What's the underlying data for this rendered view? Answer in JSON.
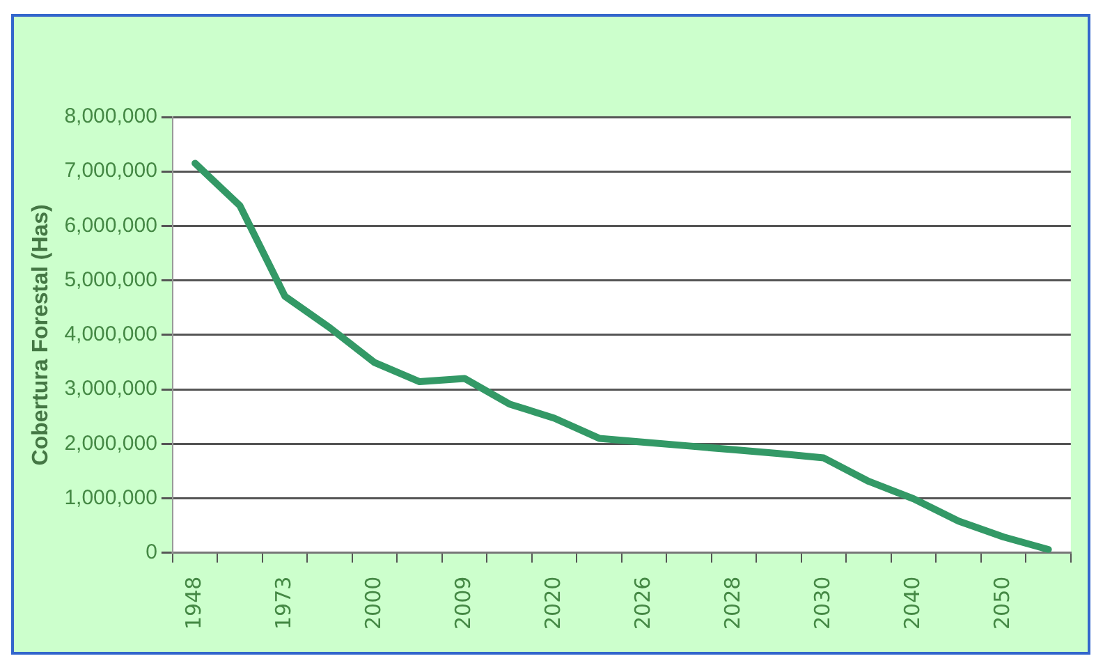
{
  "chart_data": {
    "type": "line",
    "ylabel": "Cobertura Forestal (Has)",
    "categories": [
      "1948",
      null,
      "1973",
      null,
      "2000",
      null,
      "2009",
      null,
      "2020",
      null,
      "2026",
      null,
      "2028",
      null,
      "2030",
      null,
      "2040",
      null,
      "2050",
      null
    ],
    "series": [
      {
        "color": "#339966",
        "values": [
          7150000,
          6370000,
          4710000,
          4130000,
          3490000,
          3140000,
          3200000,
          2730000,
          2470000,
          2100000,
          2030000,
          1960000,
          1890000,
          1820000,
          1740000,
          1310000,
          990000,
          580000,
          290000,
          60000
        ]
      }
    ],
    "ylim": [
      0,
      8000000
    ],
    "yticks": [
      0,
      {
        "value": 1000000,
        "label": "1,000,000"
      },
      {
        "value": 2000000,
        "label": "2,000,000"
      },
      {
        "value": 3000000,
        "label": "3,000,000"
      },
      {
        "value": 4000000,
        "label": "4,000,000"
      },
      {
        "value": 5000000,
        "label": "5,000,000"
      },
      {
        "value": 6000000,
        "label": "6,000,000"
      },
      {
        "value": 7000000,
        "label": "7,000,000"
      },
      {
        "value": 8000000,
        "label": "8,000,000"
      }
    ],
    "grid": "y",
    "legend": false,
    "marker": "none",
    "line_style": "solid"
  }
}
